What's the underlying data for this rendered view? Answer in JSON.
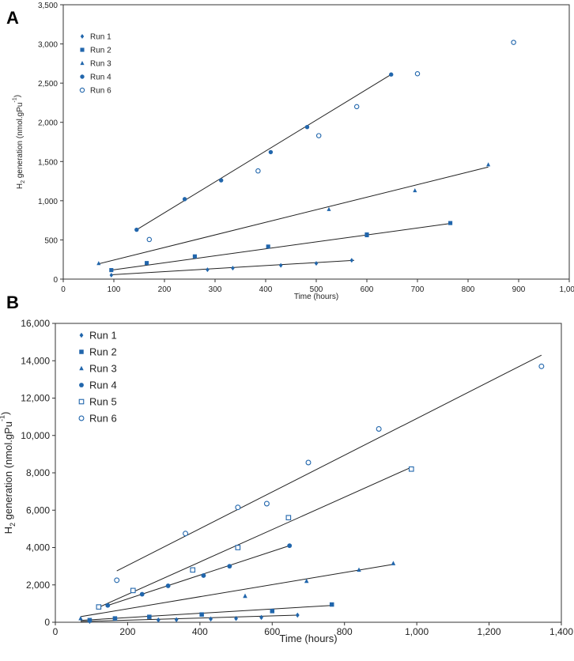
{
  "chart_data": [
    {
      "panel": "A",
      "type": "scatter",
      "xlabel": "Time (hours)",
      "ylabel_main": "H",
      "ylabel_sub": "2",
      "ylabel_rest": " generation (nmol.gPu",
      "ylabel_sup": "-1",
      "ylabel_end": ")",
      "xlim": [
        0,
        1000
      ],
      "ylim": [
        0,
        3500
      ],
      "x_ticks": [
        0,
        100,
        200,
        300,
        400,
        500,
        600,
        700,
        800,
        900,
        1000
      ],
      "x_tick_labels": [
        "0",
        "100",
        "200",
        "300",
        "400",
        "500",
        "600",
        "700",
        "800",
        "900",
        "1,000"
      ],
      "y_ticks": [
        0,
        500,
        1000,
        1500,
        2000,
        2500,
        3000,
        3500
      ],
      "y_tick_labels": [
        "0",
        "500",
        "1,000",
        "1,500",
        "2,000",
        "2,500",
        "3,000",
        "3,500"
      ],
      "legend_position": "top-left",
      "series": [
        {
          "name": "Run 1",
          "marker": "diamond",
          "points": [
            [
              95,
              50
            ],
            [
              285,
              120
            ],
            [
              335,
              140
            ],
            [
              430,
              175
            ],
            [
              500,
              200
            ],
            [
              570,
              240
            ]
          ],
          "trend": [
            [
              95,
              55
            ],
            [
              575,
              240
            ]
          ]
        },
        {
          "name": "Run 2",
          "marker": "square",
          "points": [
            [
              95,
              115
            ],
            [
              165,
              205
            ],
            [
              260,
              290
            ],
            [
              405,
              415
            ],
            [
              600,
              560
            ],
            [
              600,
              570
            ],
            [
              765,
              715
            ]
          ],
          "trend": [
            [
              95,
              115
            ],
            [
              765,
              710
            ]
          ]
        },
        {
          "name": "Run 3",
          "marker": "triangle",
          "points": [
            [
              70,
              200
            ],
            [
              525,
              890
            ],
            [
              695,
              1130
            ],
            [
              840,
              1460
            ]
          ],
          "trend": [
            [
              70,
              195
            ],
            [
              840,
              1430
            ]
          ]
        },
        {
          "name": "Run 4",
          "marker": "circle",
          "points": [
            [
              145,
              630
            ],
            [
              240,
              1020
            ],
            [
              312,
              1260
            ],
            [
              410,
              1620
            ],
            [
              482,
              1940
            ],
            [
              648,
              2610
            ]
          ],
          "trend": [
            [
              145,
              630
            ],
            [
              648,
              2610
            ]
          ]
        },
        {
          "name": "Run 6",
          "marker": "open-circle",
          "points": [
            [
              170,
              505
            ],
            [
              385,
              1380
            ],
            [
              505,
              1830
            ],
            [
              580,
              2200
            ],
            [
              700,
              2620
            ],
            [
              890,
              3020
            ]
          ],
          "trend": null
        }
      ]
    },
    {
      "panel": "B",
      "type": "scatter",
      "xlabel": "Time (hours)",
      "ylabel_main": "H",
      "ylabel_sub": "2",
      "ylabel_rest": " generation (nmol.gPu",
      "ylabel_sup": "-1",
      "ylabel_end": ")",
      "xlim": [
        0,
        1400
      ],
      "ylim": [
        0,
        16000
      ],
      "x_ticks": [
        0,
        200,
        400,
        600,
        800,
        1000,
        1200,
        1400
      ],
      "x_tick_labels": [
        "0",
        "200",
        "400",
        "600",
        "800",
        "1,000",
        "1,200",
        "1,400"
      ],
      "y_ticks": [
        0,
        2000,
        4000,
        6000,
        8000,
        10000,
        12000,
        14000,
        16000
      ],
      "y_tick_labels": [
        "0",
        "2,000",
        "4,000",
        "6,000",
        "8,000",
        "10,000",
        "12,000",
        "14,000",
        "16,000"
      ],
      "legend_position": "top-left",
      "series": [
        {
          "name": "Run 1",
          "marker": "diamond",
          "points": [
            [
              95,
              50
            ],
            [
              285,
              120
            ],
            [
              335,
              140
            ],
            [
              430,
              175
            ],
            [
              500,
              200
            ],
            [
              570,
              260
            ],
            [
              670,
              380
            ]
          ],
          "trend": [
            [
              70,
              40
            ],
            [
              670,
              380
            ]
          ]
        },
        {
          "name": "Run 2",
          "marker": "square",
          "points": [
            [
              95,
              115
            ],
            [
              165,
              205
            ],
            [
              260,
              290
            ],
            [
              405,
              415
            ],
            [
              600,
              600
            ],
            [
              765,
              950
            ]
          ],
          "trend": [
            [
              70,
              100
            ],
            [
              765,
              900
            ]
          ]
        },
        {
          "name": "Run 3",
          "marker": "triangle",
          "points": [
            [
              70,
              200
            ],
            [
              525,
              1400
            ],
            [
              695,
              2200
            ],
            [
              840,
              2800
            ],
            [
              935,
              3150
            ]
          ],
          "trend": [
            [
              70,
              300
            ],
            [
              935,
              3100
            ]
          ]
        },
        {
          "name": "Run 4",
          "marker": "circle",
          "points": [
            [
              145,
              900
            ],
            [
              240,
              1500
            ],
            [
              312,
              1950
            ],
            [
              410,
              2500
            ],
            [
              482,
              3000
            ],
            [
              648,
              4100
            ]
          ],
          "trend": [
            [
              145,
              900
            ],
            [
              648,
              4100
            ]
          ]
        },
        {
          "name": "Run 5",
          "marker": "open-square",
          "points": [
            [
              120,
              820
            ],
            [
              215,
              1700
            ],
            [
              380,
              2800
            ],
            [
              505,
              4000
            ],
            [
              645,
              5600
            ],
            [
              985,
              8200
            ]
          ],
          "trend": [
            [
              120,
              800
            ],
            [
              985,
              8300
            ]
          ]
        },
        {
          "name": "Run 6",
          "marker": "open-circle",
          "points": [
            [
              170,
              2250
            ],
            [
              360,
              4750
            ],
            [
              505,
              6150
            ],
            [
              585,
              6350
            ],
            [
              700,
              8550
            ],
            [
              895,
              10350
            ],
            [
              1345,
              13700
            ]
          ],
          "trend": [
            [
              170,
              2750
            ],
            [
              1345,
              14300
            ]
          ]
        }
      ]
    }
  ]
}
